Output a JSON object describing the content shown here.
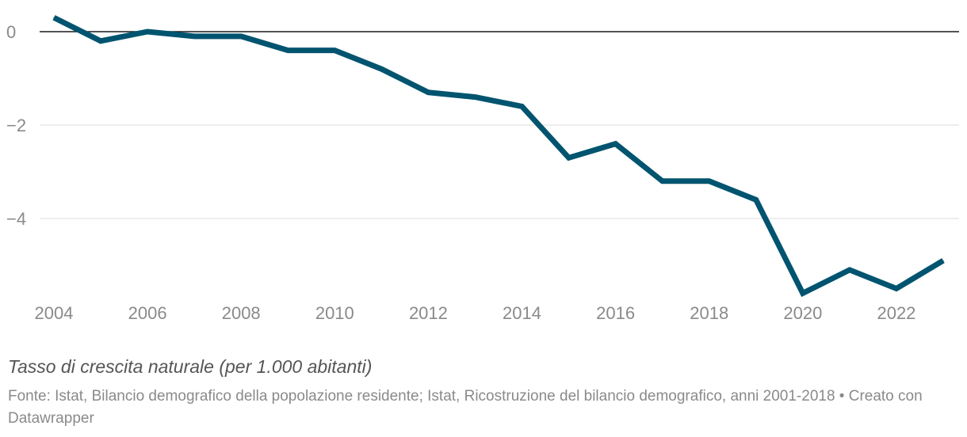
{
  "chart_data": {
    "type": "line",
    "title": "",
    "xlabel": "",
    "ylabel": "",
    "x": [
      2004,
      2005,
      2006,
      2007,
      2008,
      2009,
      2010,
      2011,
      2012,
      2013,
      2014,
      2015,
      2016,
      2017,
      2018,
      2019,
      2020,
      2021,
      2022,
      2023
    ],
    "series": [
      {
        "name": "Tasso di crescita naturale",
        "values": [
          0.3,
          -0.2,
          0.0,
          -0.1,
          -0.1,
          -0.4,
          -0.4,
          -0.8,
          -1.3,
          -1.4,
          -1.6,
          -2.7,
          -2.4,
          -3.2,
          -3.2,
          -3.6,
          -5.6,
          -5.1,
          -5.5,
          -4.9
        ],
        "color": "#00546f"
      }
    ],
    "x_ticks": [
      "2004",
      "2006",
      "2008",
      "2010",
      "2012",
      "2014",
      "2016",
      "2018",
      "2020",
      "2022"
    ],
    "y_ticks": [
      {
        "value": 0,
        "label": "0"
      },
      {
        "value": -2,
        "label": "−2"
      },
      {
        "value": -4,
        "label": "−4"
      }
    ],
    "ylim": [
      -5.9,
      0.4
    ],
    "xlim": [
      2004,
      2023
    ],
    "grid": true
  },
  "caption": "Tasso di crescita naturale (per 1.000 abitanti)",
  "source": "Fonte: Istat, Bilancio demografico della popolazione residente; Istat, Ricostruzione del bilancio demografico, anni 2001-2018 • Creato con Datawrapper",
  "colors": {
    "line": "#00546f",
    "grid": "#e3e3e3",
    "zero_line": "#1a1a1a",
    "tick_text": "#8a8a8a"
  }
}
